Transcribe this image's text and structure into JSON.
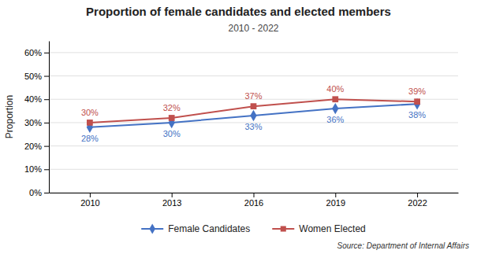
{
  "chart_data": {
    "type": "line",
    "title": "Proportion of female candidates and elected members",
    "subtitle": "2010 - 2022",
    "y_label": "Proportion",
    "x": [
      2010,
      2013,
      2016,
      2019,
      2022
    ],
    "xlim": [
      2008.5,
      2023.5
    ],
    "xticks": [
      2010,
      2013,
      2016,
      2019,
      2022
    ],
    "ylim": [
      0.0,
      0.65
    ],
    "yticks": [
      {
        "value": 0.0,
        "label": "0%"
      },
      {
        "value": 0.1,
        "label": "10%"
      },
      {
        "value": 0.2,
        "label": "20%"
      },
      {
        "value": 0.3,
        "label": "30%"
      },
      {
        "value": 0.4,
        "label": "40%"
      },
      {
        "value": 0.5,
        "label": "50%"
      },
      {
        "value": 0.6,
        "label": "60%"
      }
    ],
    "grid": true,
    "legend": "bottom",
    "data_labels": true,
    "series": [
      {
        "name": "Female Candidates",
        "color": "#4472C4",
        "marker": "diamond",
        "values": [
          0.28,
          0.3,
          0.33,
          0.36,
          0.38
        ],
        "value_labels": [
          "28%",
          "30%",
          "33%",
          "36%",
          "38%"
        ]
      },
      {
        "name": "Women Elected",
        "color": "#C0504D",
        "marker": "square",
        "values": [
          0.3,
          0.32,
          0.37,
          0.4,
          0.39
        ],
        "value_labels": [
          "30%",
          "32%",
          "37%",
          "40%",
          "39%"
        ]
      }
    ],
    "annotations": [
      "Source: Department of Internal Affairs"
    ]
  }
}
